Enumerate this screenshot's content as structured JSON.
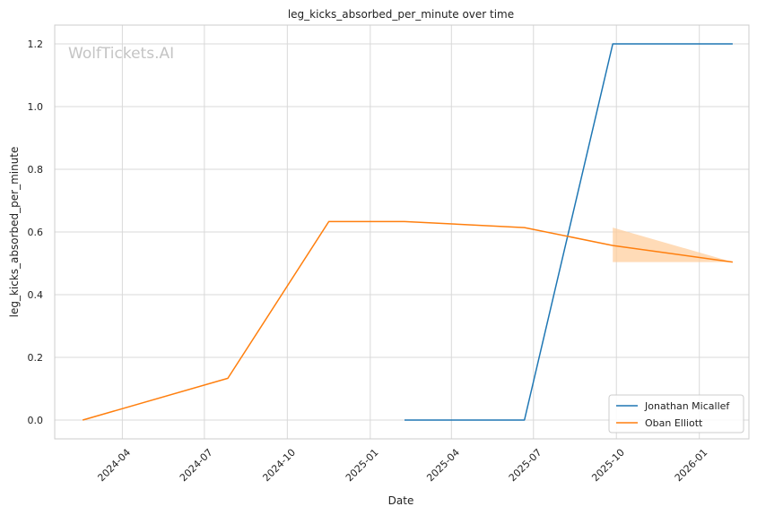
{
  "chart_data": {
    "type": "line",
    "title": "leg_kicks_absorbed_per_minute over time",
    "xlabel": "Date",
    "ylabel": "leg_kicks_absorbed_per_minute",
    "watermark": "WolfTickets.AI",
    "xlim": [
      "2024-01-17",
      "2026-02-25"
    ],
    "ylim": [
      -0.06,
      1.26
    ],
    "x_ticks": [
      {
        "date": "2024-04-01",
        "label": "2024-04"
      },
      {
        "date": "2024-07-01",
        "label": "2024-07"
      },
      {
        "date": "2024-10-01",
        "label": "2024-10"
      },
      {
        "date": "2025-01-01",
        "label": "2025-01"
      },
      {
        "date": "2025-04-01",
        "label": "2025-04"
      },
      {
        "date": "2025-07-01",
        "label": "2025-07"
      },
      {
        "date": "2025-10-01",
        "label": "2025-10"
      },
      {
        "date": "2026-01-01",
        "label": "2026-01"
      }
    ],
    "y_ticks": [
      {
        "value": 0.0,
        "label": "0.0"
      },
      {
        "value": 0.2,
        "label": "0.2"
      },
      {
        "value": 0.4,
        "label": "0.4"
      },
      {
        "value": 0.6,
        "label": "0.6"
      },
      {
        "value": 0.8,
        "label": "0.8"
      },
      {
        "value": 1.0,
        "label": "1.0"
      },
      {
        "value": 1.2,
        "label": "1.2"
      }
    ],
    "grid": true,
    "legend_position": "bottom-right",
    "series": [
      {
        "name": "Jonathan Micallef",
        "color": "#1f77b4",
        "points": [
          {
            "x": "2025-02-08",
            "y": 0.0
          },
          {
            "x": "2025-06-21",
            "y": 0.0
          },
          {
            "x": "2025-09-27",
            "y": 1.2
          },
          {
            "x": "2026-02-07",
            "y": 1.2
          }
        ]
      },
      {
        "name": "Oban Elliott",
        "color": "#ff7f0e",
        "points": [
          {
            "x": "2024-02-17",
            "y": 0.0
          },
          {
            "x": "2024-07-27",
            "y": 0.133
          },
          {
            "x": "2024-11-16",
            "y": 0.633
          },
          {
            "x": "2025-02-08",
            "y": 0.633
          },
          {
            "x": "2025-06-21",
            "y": 0.614
          },
          {
            "x": "2025-09-27",
            "y": 0.557
          },
          {
            "x": "2026-02-07",
            "y": 0.504
          }
        ],
        "band": {
          "color": "#ffcc99",
          "points": [
            {
              "x": "2025-09-27",
              "low": 0.504,
              "high": 0.614
            },
            {
              "x": "2026-02-07",
              "low": 0.504,
              "high": 0.504
            }
          ]
        }
      }
    ]
  }
}
